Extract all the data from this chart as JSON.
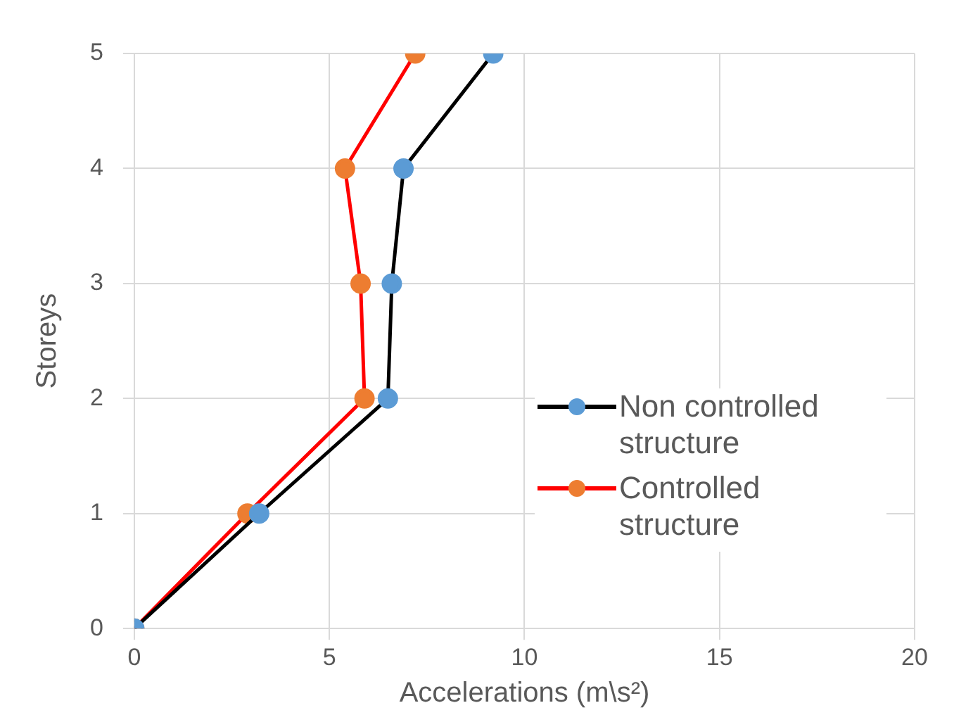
{
  "chart_data": {
    "type": "line",
    "xlabel": "Accelerations (m\\s²)",
    "ylabel": "Storeys",
    "xlim": [
      0,
      20
    ],
    "xticks": [
      0,
      5,
      10,
      15,
      20
    ],
    "ylim": [
      0,
      5
    ],
    "yticks": [
      0,
      1,
      2,
      3,
      4,
      5
    ],
    "grid": true,
    "legend": "right",
    "marker": "circle",
    "line_style": "solid",
    "series": [
      {
        "name": "Non controlled structure",
        "color": "#000000",
        "colors": [
          "#5b9bd5",
          "#5b9bd5",
          "#5b9bd5",
          "#5b9bd5",
          "#5b9bd5",
          "#5b9bd5"
        ],
        "x": [
          0,
          3.2,
          6.5,
          6.6,
          6.9,
          9.2
        ],
        "values": [
          0,
          1,
          2,
          3,
          4,
          5
        ]
      },
      {
        "name": "Controlled structure",
        "color": "#ff0000",
        "colors": [
          "#ed7d31",
          "#ed7d31",
          "#ed7d31",
          "#ed7d31",
          "#ed7d31",
          "#ed7d31"
        ],
        "x": [
          0,
          2.9,
          5.9,
          5.8,
          5.4,
          7.2
        ],
        "values": [
          0,
          1,
          2,
          3,
          4,
          5
        ]
      }
    ]
  }
}
